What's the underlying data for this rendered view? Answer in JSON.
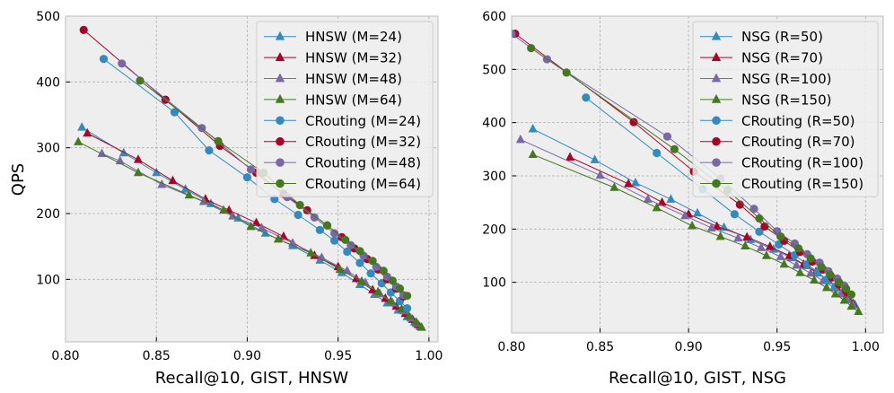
{
  "chart_data": [
    {
      "type": "line",
      "xlabel": "Recall@10, GIST, HNSW",
      "ylabel": "QPS",
      "xlim": [
        0.8,
        1.005
      ],
      "ylim": [
        5,
        500
      ],
      "xticks": [
        0.8,
        0.85,
        0.9,
        0.95,
        1.0
      ],
      "xtick_labels": [
        "0.80",
        "0.85",
        "0.90",
        "0.95",
        "1.00"
      ],
      "yticks": [
        100,
        200,
        300,
        400,
        500
      ],
      "ytick_labels": [
        "100",
        "200",
        "300",
        "400",
        "500"
      ],
      "grid": true,
      "legend_position": "top-right",
      "series": [
        {
          "name": "HNSW (M=24)",
          "color": "#348ABD",
          "marker": "triangle",
          "x": [
            0.809,
            0.832,
            0.85,
            0.866,
            0.88,
            0.895,
            0.91,
            0.925,
            0.94,
            0.952,
            0.962,
            0.97,
            0.977,
            0.983,
            0.988,
            0.992,
            0.995
          ],
          "y": [
            331,
            292,
            262,
            237,
            215,
            193,
            170,
            151,
            129,
            110,
            92,
            77,
            64,
            53,
            43,
            35,
            28
          ]
        },
        {
          "name": "HNSW (M=32)",
          "color": "#A60628",
          "marker": "triangle",
          "x": [
            0.812,
            0.84,
            0.859,
            0.877,
            0.89,
            0.905,
            0.92,
            0.937,
            0.95,
            0.96,
            0.969,
            0.976,
            0.982,
            0.987,
            0.991,
            0.994
          ],
          "y": [
            322,
            282,
            250,
            222,
            205,
            186,
            165,
            136,
            119,
            101,
            84,
            71,
            59,
            48,
            39,
            31
          ]
        },
        {
          "name": "HNSW (M=48)",
          "color": "#7A68A6",
          "marker": "triangle",
          "x": [
            0.82,
            0.83,
            0.853,
            0.876,
            0.892,
            0.908,
            0.925,
            0.941,
            0.955,
            0.965,
            0.973,
            0.98,
            0.986,
            0.99,
            0.993
          ],
          "y": [
            291,
            280,
            244,
            218,
            196,
            178,
            155,
            133,
            113,
            95,
            78,
            64,
            52,
            41,
            33
          ]
        },
        {
          "name": "HNSW (M=64)",
          "color": "#467821",
          "marker": "triangle",
          "x": [
            0.807,
            0.84,
            0.868,
            0.887,
            0.902,
            0.917,
            0.935,
            0.951,
            0.963,
            0.972,
            0.979,
            0.985,
            0.989,
            0.993,
            0.996
          ],
          "y": [
            309,
            262,
            228,
            205,
            180,
            161,
            140,
            115,
            97,
            81,
            67,
            55,
            44,
            35,
            27
          ]
        },
        {
          "name": "CRouting (M=24)",
          "color": "#348ABD",
          "marker": "circle",
          "x": [
            0.821,
            0.86,
            0.879,
            0.9,
            0.915,
            0.928,
            0.94,
            0.948,
            0.955,
            0.962,
            0.968,
            0.974,
            0.979,
            0.984,
            0.988
          ],
          "y": [
            435,
            354,
            296,
            255,
            222,
            198,
            175,
            159,
            142,
            125,
            109,
            94,
            80,
            67,
            56
          ]
        },
        {
          "name": "CRouting (M=32)",
          "color": "#A60628",
          "marker": "circle",
          "x": [
            0.81,
            0.855,
            0.885,
            0.905,
            0.92,
            0.933,
            0.944,
            0.952,
            0.959,
            0.966,
            0.972,
            0.977,
            0.982,
            0.986
          ],
          "y": [
            479,
            373,
            303,
            262,
            230,
            205,
            182,
            164,
            147,
            131,
            115,
            100,
            86,
            74
          ]
        },
        {
          "name": "CRouting (M=48)",
          "color": "#7A68A6",
          "marker": "circle",
          "x": [
            0.831,
            0.875,
            0.902,
            0.922,
            0.937,
            0.948,
            0.957,
            0.964,
            0.971,
            0.977,
            0.982,
            0.986
          ],
          "y": [
            428,
            330,
            267,
            225,
            194,
            170,
            152,
            136,
            119,
            104,
            89,
            76
          ]
        },
        {
          "name": "CRouting (M=64)",
          "color": "#467821",
          "marker": "circle",
          "x": [
            0.841,
            0.884,
            0.909,
            0.929,
            0.944,
            0.954,
            0.962,
            0.969,
            0.975,
            0.98,
            0.984,
            0.988
          ],
          "y": [
            402,
            310,
            262,
            213,
            182,
            160,
            143,
            128,
            113,
            98,
            86,
            75
          ]
        }
      ]
    },
    {
      "type": "line",
      "xlabel": "Recall@10, GIST, NSG",
      "ylabel": "",
      "xlim": [
        0.8,
        1.01
      ],
      "ylim": [
        5,
        600
      ],
      "xticks": [
        0.8,
        0.85,
        0.9,
        0.95,
        1.0
      ],
      "xtick_labels": [
        "0.80",
        "0.85",
        "0.90",
        "0.95",
        "1.00"
      ],
      "yticks": [
        100,
        200,
        300,
        400,
        500,
        600
      ],
      "ytick_labels": [
        "100",
        "200",
        "300",
        "400",
        "500",
        "600"
      ],
      "grid": true,
      "legend_position": "top-right",
      "series": [
        {
          "name": "NSG (R=50)",
          "color": "#348ABD",
          "marker": "triangle",
          "x": [
            0.812,
            0.847,
            0.87,
            0.89,
            0.905,
            0.92,
            0.935,
            0.948,
            0.958,
            0.966,
            0.973,
            0.979,
            0.984,
            0.988,
            0.991,
            0.994
          ],
          "y": [
            388,
            330,
            287,
            256,
            230,
            203,
            180,
            162,
            146,
            131,
            117,
            103,
            90,
            79,
            68,
            58
          ]
        },
        {
          "name": "NSG (R=70)",
          "color": "#A60628",
          "marker": "triangle",
          "x": [
            0.833,
            0.866,
            0.885,
            0.9,
            0.916,
            0.933,
            0.946,
            0.957,
            0.965,
            0.972,
            0.978,
            0.983,
            0.987,
            0.99,
            0.993
          ],
          "y": [
            335,
            285,
            250,
            228,
            205,
            185,
            167,
            150,
            134,
            120,
            106,
            93,
            81,
            70,
            60
          ]
        },
        {
          "name": "NSG (R=100)",
          "color": "#7A68A6",
          "marker": "triangle",
          "x": [
            0.805,
            0.85,
            0.877,
            0.898,
            0.913,
            0.928,
            0.941,
            0.952,
            0.961,
            0.969,
            0.976,
            0.982,
            0.986,
            0.99,
            0.993
          ],
          "y": [
            368,
            301,
            256,
            225,
            202,
            183,
            165,
            148,
            132,
            117,
            103,
            90,
            78,
            67,
            57
          ]
        },
        {
          "name": "NSG (R=150)",
          "color": "#467821",
          "marker": "triangle",
          "x": [
            0.812,
            0.858,
            0.882,
            0.902,
            0.918,
            0.932,
            0.944,
            0.954,
            0.963,
            0.971,
            0.978,
            0.983,
            0.988,
            0.992,
            0.996
          ],
          "y": [
            340,
            278,
            240,
            206,
            186,
            168,
            150,
            134,
            118,
            104,
            90,
            78,
            66,
            55,
            45
          ]
        },
        {
          "name": "CRouting (R=50)",
          "color": "#348ABD",
          "marker": "circle",
          "x": [
            0.842,
            0.882,
            0.908,
            0.926,
            0.94,
            0.951,
            0.96,
            0.967,
            0.973,
            0.978,
            0.983
          ],
          "y": [
            447,
            343,
            275,
            228,
            195,
            171,
            151,
            134,
            119,
            105,
            92
          ]
        },
        {
          "name": "CRouting (R=70)",
          "color": "#A60628",
          "marker": "circle",
          "x": [
            0.802,
            0.869,
            0.903,
            0.929,
            0.943,
            0.954,
            0.963,
            0.97,
            0.976,
            0.981,
            0.985,
            0.989
          ],
          "y": [
            567,
            401,
            308,
            246,
            205,
            178,
            157,
            139,
            124,
            109,
            96,
            84
          ]
        },
        {
          "name": "CRouting (R=100)",
          "color": "#7A68A6",
          "marker": "circle",
          "x": [
            0.8,
            0.82,
            0.888,
            0.918,
            0.937,
            0.95,
            0.96,
            0.967,
            0.974,
            0.979,
            0.984,
            0.988
          ],
          "y": [
            567,
            519,
            374,
            295,
            238,
            196,
            173,
            153,
            137,
            121,
            107,
            94
          ]
        },
        {
          "name": "CRouting (R=150)",
          "color": "#467821",
          "marker": "circle",
          "x": [
            0.811,
            0.831,
            0.892,
            0.922,
            0.94,
            0.952,
            0.962,
            0.969,
            0.975,
            0.98,
            0.985,
            0.989,
            0.992
          ],
          "y": [
            540,
            494,
            350,
            273,
            220,
            186,
            164,
            145,
            129,
            114,
            100,
            88,
            77
          ]
        }
      ]
    }
  ]
}
